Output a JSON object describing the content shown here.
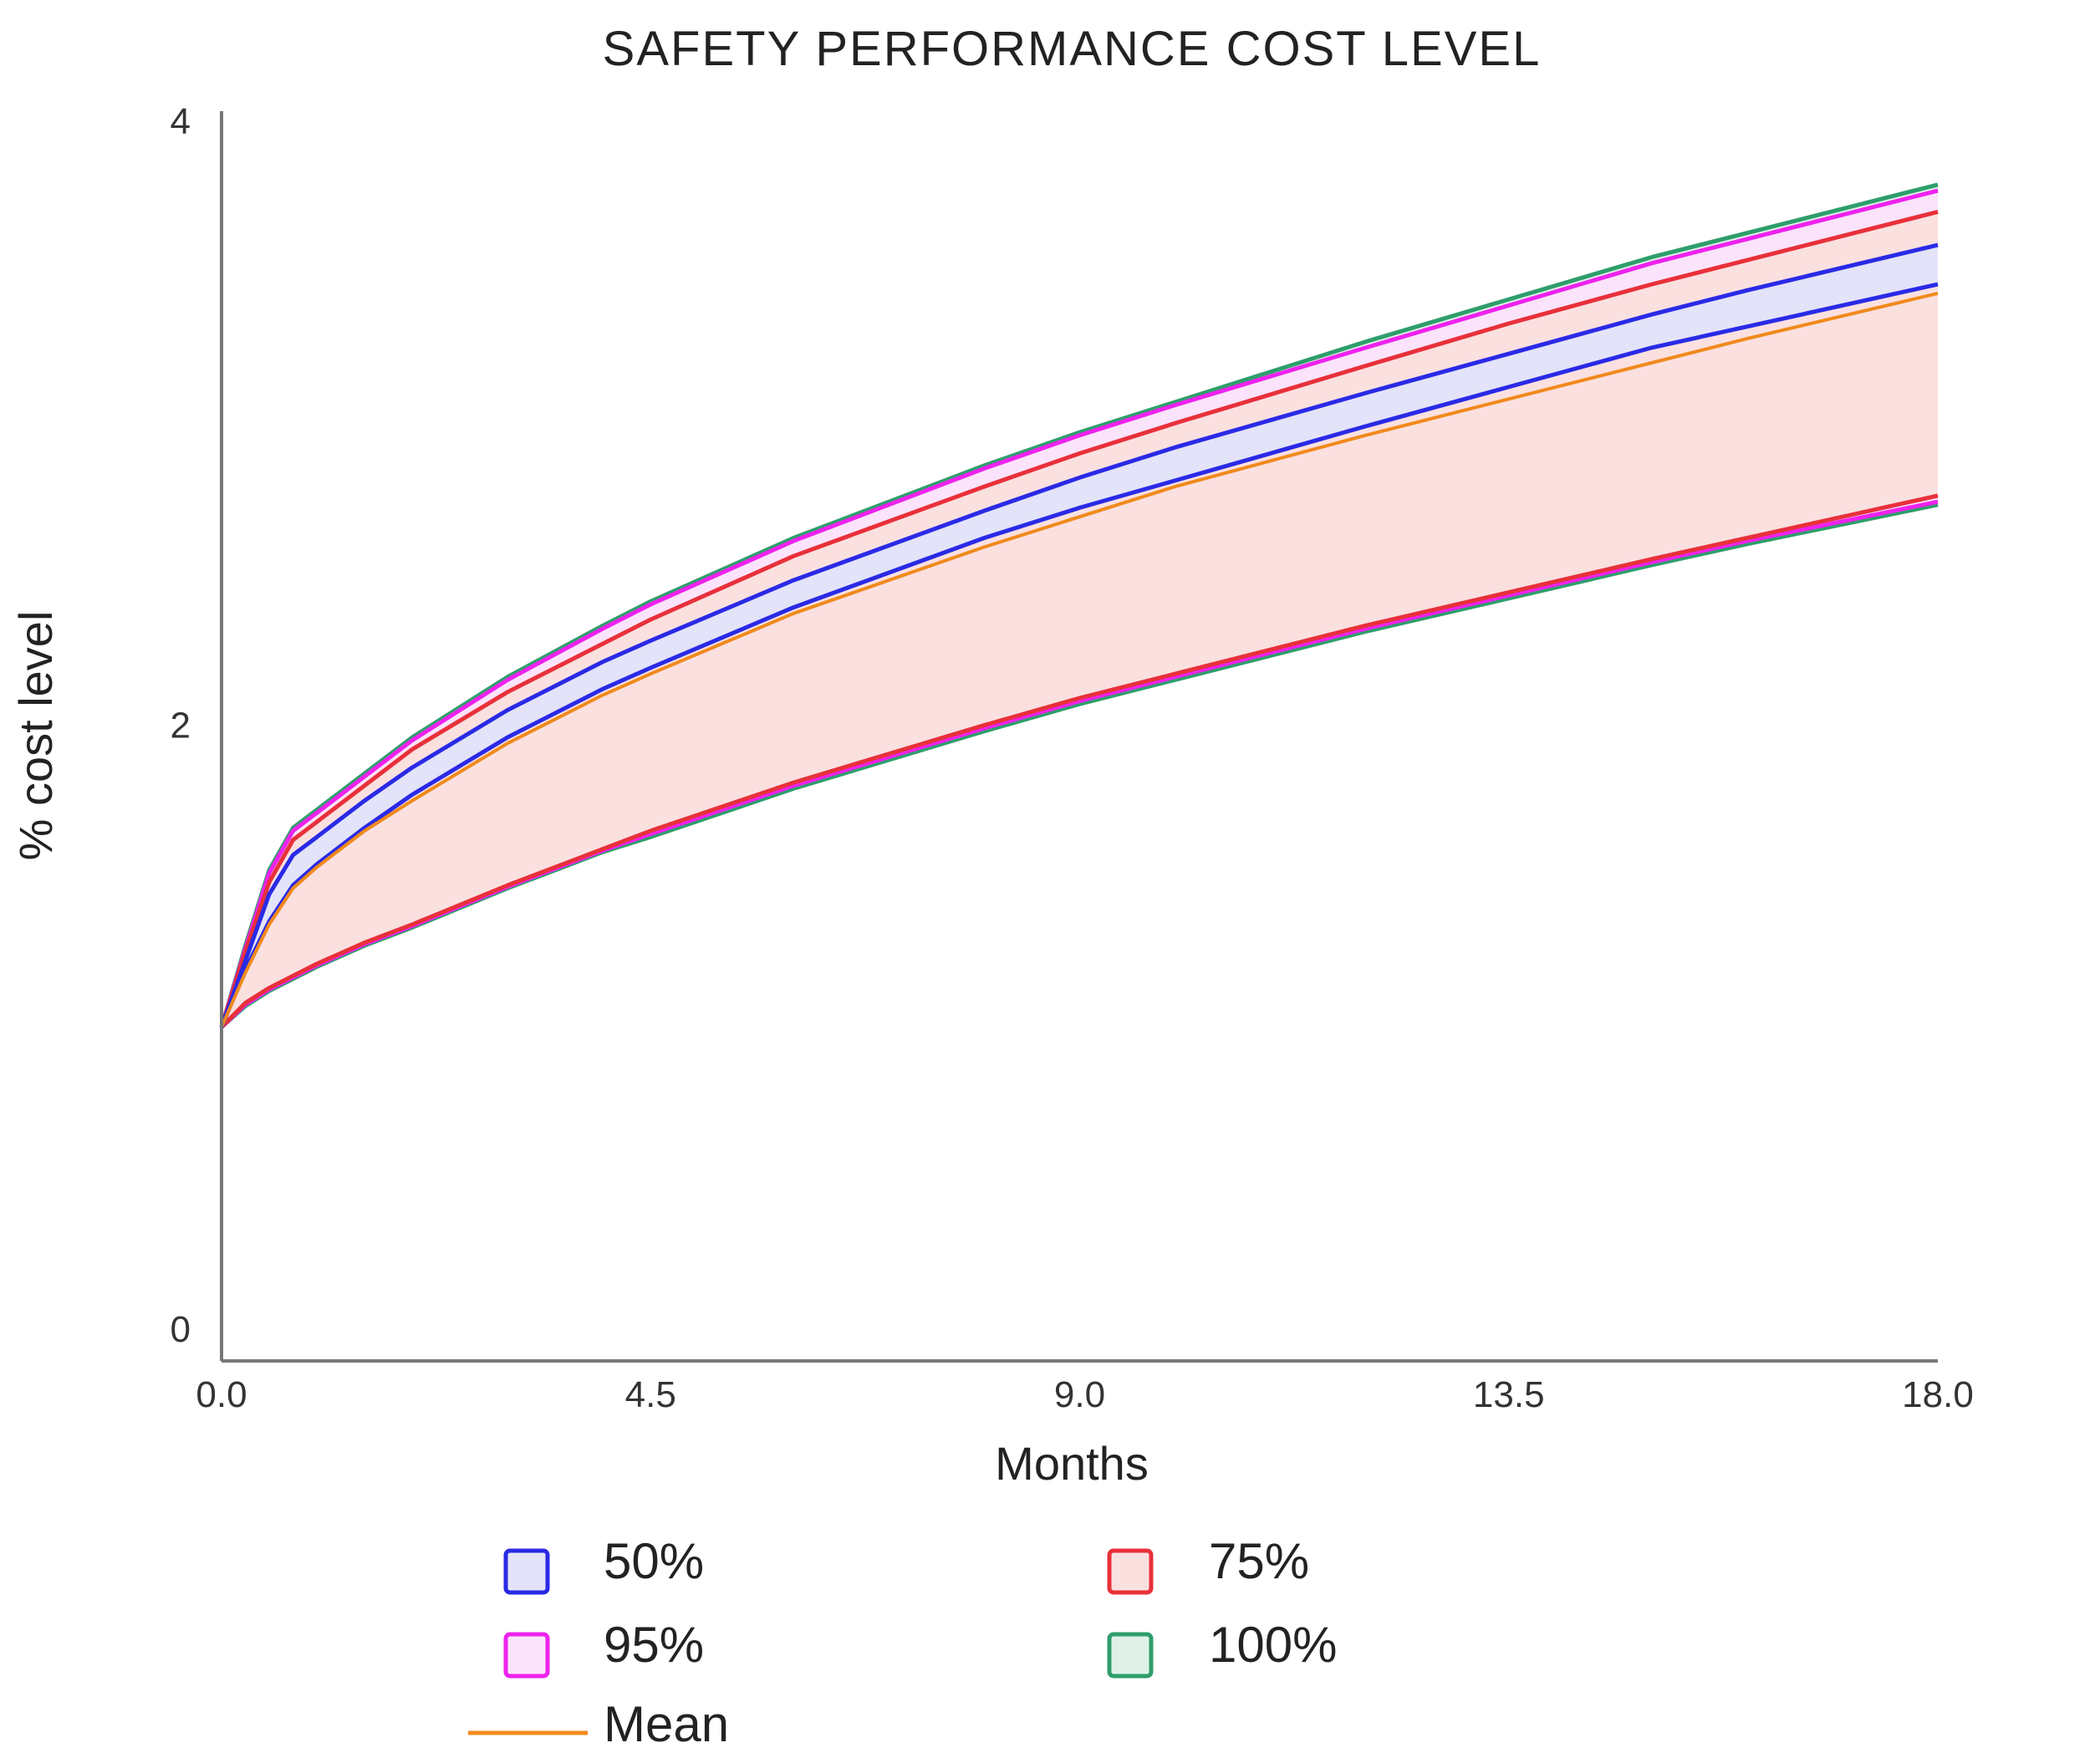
{
  "chart_data": {
    "type": "area",
    "title": "SAFETY PERFORMANCE COST LEVEL",
    "xlabel": "Months",
    "ylabel": "% cost level",
    "xlim": [
      0,
      18
    ],
    "ylim": [
      0,
      4
    ],
    "x_ticks": [
      "0.0",
      "4.5",
      "9.0",
      "13.5",
      "18.0"
    ],
    "y_ticks": [
      "0",
      "2",
      "4"
    ],
    "grid": false,
    "x": [
      0,
      0.25,
      0.5,
      0.75,
      1,
      1.5,
      2,
      3,
      4,
      4.5,
      6,
      8,
      9,
      10,
      12,
      13.5,
      15,
      16,
      18
    ],
    "bands": [
      {
        "name": "100%",
        "color": "#2e9e6b",
        "fill": "#dff1e8",
        "upper": [
          1.0,
          1.27,
          1.52,
          1.66,
          1.72,
          1.84,
          1.96,
          2.16,
          2.33,
          2.41,
          2.62,
          2.86,
          2.97,
          3.07,
          3.27,
          3.41,
          3.55,
          3.63,
          3.79
        ],
        "lower": [
          1.0,
          1.07,
          1.12,
          1.16,
          1.2,
          1.27,
          1.33,
          1.46,
          1.58,
          1.63,
          1.79,
          1.98,
          2.07,
          2.15,
          2.31,
          2.42,
          2.53,
          2.6,
          2.73
        ]
      },
      {
        "name": "95%",
        "color": "#ee22ee",
        "fill": "#fbe3fb",
        "upper": [
          1.0,
          1.26,
          1.51,
          1.65,
          1.71,
          1.83,
          1.95,
          2.15,
          2.32,
          2.4,
          2.61,
          2.85,
          2.96,
          3.06,
          3.25,
          3.39,
          3.53,
          3.61,
          3.77
        ],
        "lower": [
          1.0,
          1.075,
          1.125,
          1.165,
          1.205,
          1.275,
          1.335,
          1.465,
          1.585,
          1.64,
          1.8,
          1.99,
          2.08,
          2.16,
          2.32,
          2.43,
          2.54,
          2.61,
          2.74
        ]
      },
      {
        "name": "75%",
        "color": "#e8303a",
        "fill": "#fbe0e0",
        "upper": [
          1.0,
          1.25,
          1.48,
          1.62,
          1.68,
          1.8,
          1.92,
          2.11,
          2.27,
          2.35,
          2.56,
          2.79,
          2.9,
          3.0,
          3.19,
          3.33,
          3.46,
          3.54,
          3.7
        ],
        "lower": [
          1.0,
          1.08,
          1.13,
          1.17,
          1.21,
          1.28,
          1.34,
          1.47,
          1.59,
          1.65,
          1.81,
          2.0,
          2.09,
          2.17,
          2.33,
          2.44,
          2.55,
          2.62,
          2.76
        ]
      },
      {
        "name": "50%",
        "color": "#2a2ae6",
        "fill": "#e3e3f9",
        "upper": [
          1.0,
          1.22,
          1.44,
          1.57,
          1.63,
          1.75,
          1.86,
          2.05,
          2.21,
          2.28,
          2.48,
          2.71,
          2.82,
          2.92,
          3.1,
          3.23,
          3.36,
          3.44,
          3.59
        ],
        "lower": [
          1.0,
          1.19,
          1.35,
          1.47,
          1.54,
          1.66,
          1.77,
          1.96,
          2.12,
          2.19,
          2.39,
          2.62,
          2.72,
          2.81,
          2.99,
          3.12,
          3.25,
          3.32,
          3.46
        ]
      }
    ],
    "mean": {
      "name": "Mean",
      "color": "#f08a1c",
      "values": [
        1.0,
        1.18,
        1.34,
        1.46,
        1.53,
        1.65,
        1.75,
        1.94,
        2.1,
        2.17,
        2.37,
        2.59,
        2.69,
        2.79,
        2.96,
        3.08,
        3.2,
        3.28,
        3.43
      ]
    },
    "legend": [
      {
        "label": "50%",
        "kind": "band",
        "stroke": "#2a2ae6",
        "fill": "#e3e3f9"
      },
      {
        "label": "75%",
        "kind": "band",
        "stroke": "#e8303a",
        "fill": "#fbe0e0"
      },
      {
        "label": "95%",
        "kind": "band",
        "stroke": "#ee22ee",
        "fill": "#fbe3fb"
      },
      {
        "label": "100%",
        "kind": "band",
        "stroke": "#2e9e6b",
        "fill": "#dff1e8"
      },
      {
        "label": "Mean",
        "kind": "line",
        "stroke": "#f08a1c"
      }
    ]
  }
}
